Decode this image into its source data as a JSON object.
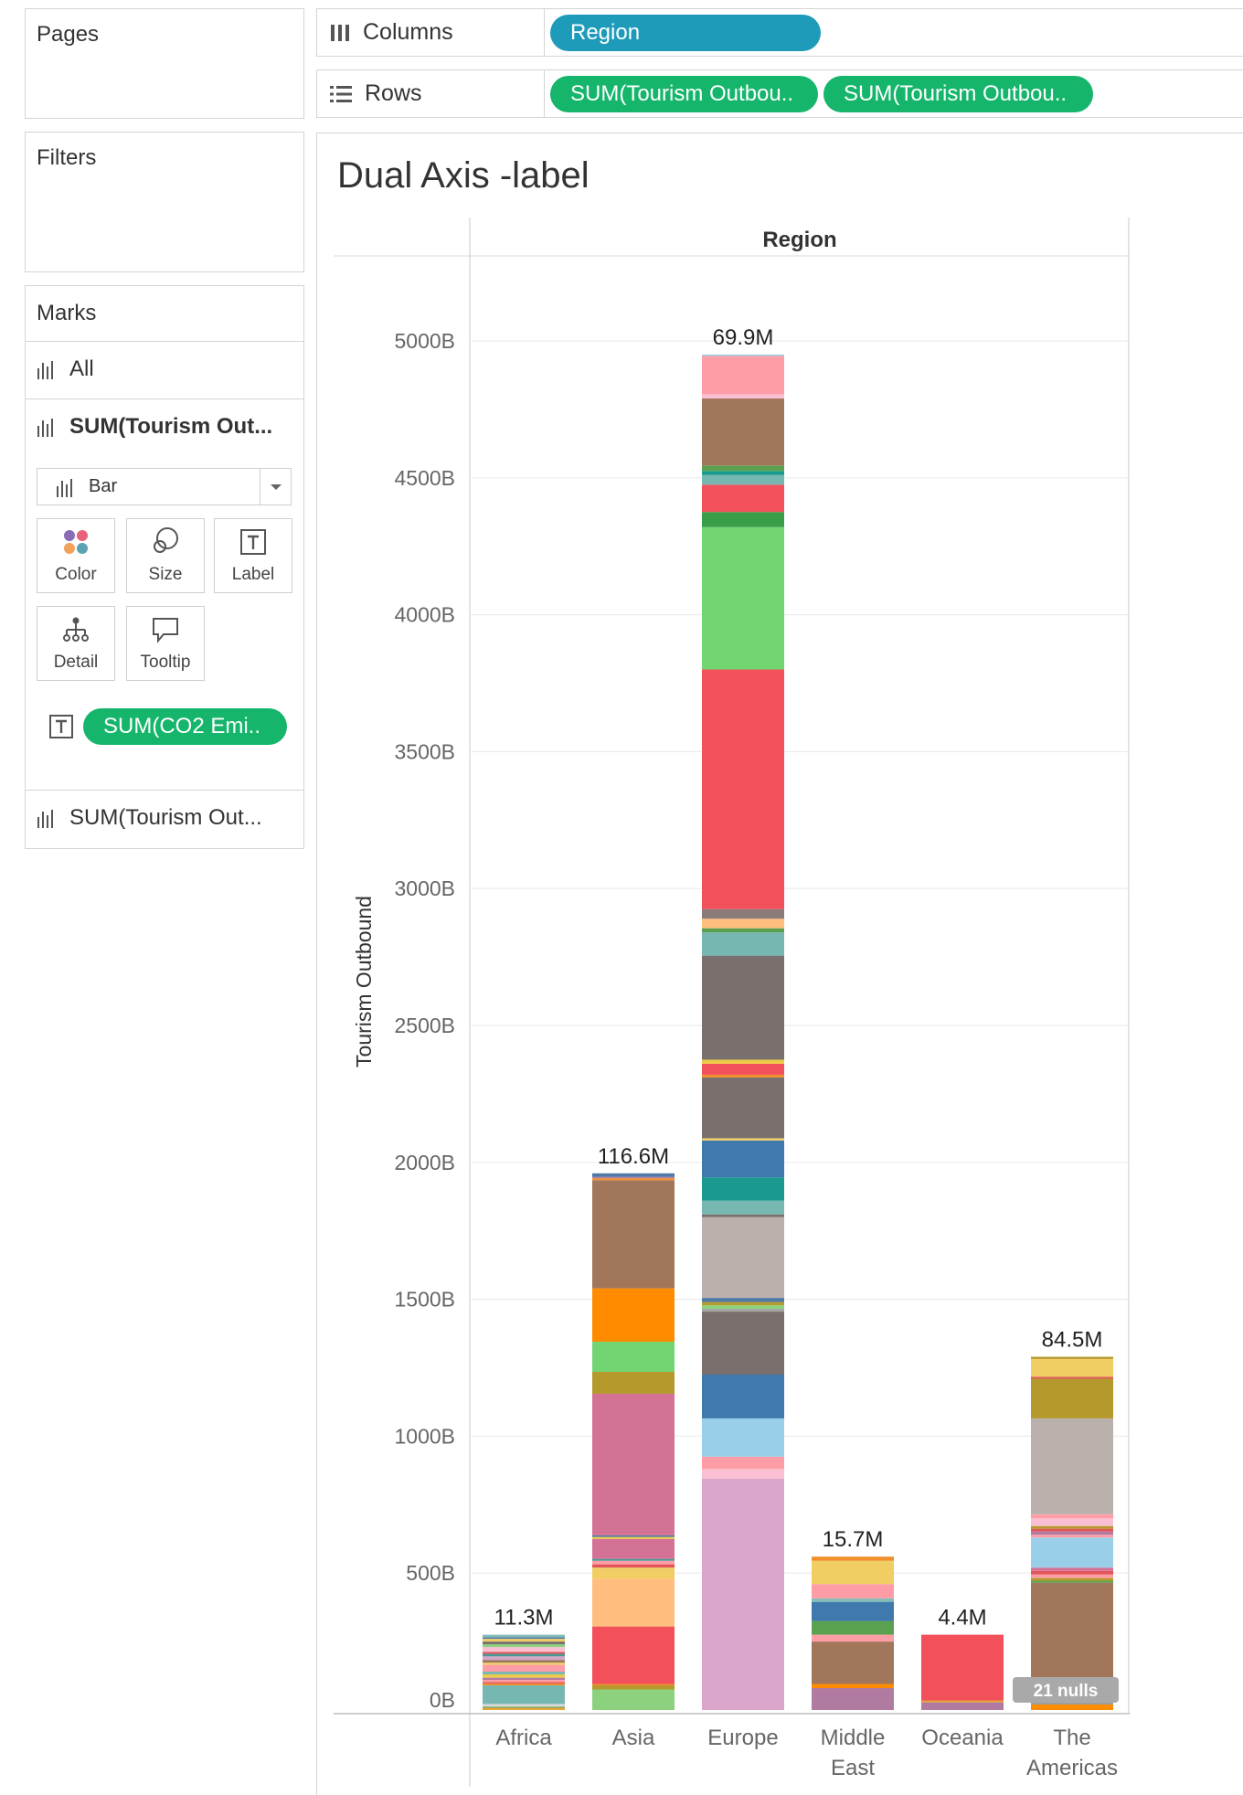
{
  "sidebar": {
    "pages_title": "Pages",
    "filters_title": "Filters",
    "marks_title": "Marks",
    "marks_all": "All",
    "marks_layer1": "SUM(Tourism Out...",
    "mark_type": "Bar",
    "buttons": {
      "color": "Color",
      "size": "Size",
      "label": "Label",
      "detail": "Detail",
      "tooltip": "Tooltip"
    },
    "label_field_pill": "SUM(CO2 Emi..",
    "marks_layer2": "SUM(Tourism Out..."
  },
  "shelves": {
    "columns_label": "Columns",
    "columns_pill": "Region",
    "rows_label": "Rows",
    "rows_pill_1": "SUM(Tourism Outbou..",
    "rows_pill_2": "SUM(Tourism Outbou.."
  },
  "sheet": {
    "title": "Dual Axis -label",
    "header": "Region",
    "nulls_badge": "21 nulls"
  },
  "colors": {
    "blue_pill": "#1f9bba",
    "green_pill": "#15b56b"
  },
  "chart_data": {
    "type": "bar",
    "stacked": true,
    "ylabel": "Tourism Outbound",
    "ylim": [
      0,
      5300
    ],
    "y_unit": "B",
    "yticks": [
      "0B",
      "500B",
      "1000B",
      "1500B",
      "2000B",
      "2500B",
      "3000B",
      "3500B",
      "4000B",
      "4500B",
      "5000B"
    ],
    "categories": [
      {
        "name": "Africa",
        "lines": [
          "Africa"
        ],
        "total": 275,
        "label": "11.3M",
        "segments": [
          [
            0,
            "#e8a33a"
          ],
          [
            8,
            "#59a14f"
          ],
          [
            12,
            "#d9d9d9"
          ],
          [
            22,
            "#76b7b2"
          ],
          [
            90,
            "#f28e2b"
          ],
          [
            97,
            "#e15759"
          ],
          [
            102,
            "#ff9da7"
          ],
          [
            110,
            "#b07aa1"
          ],
          [
            118,
            "#edc948"
          ],
          [
            130,
            "#76b7b2"
          ],
          [
            140,
            "#ff9da7"
          ],
          [
            165,
            "#f1ce63"
          ],
          [
            173,
            "#9d7660"
          ],
          [
            183,
            "#d4a6c8"
          ],
          [
            196,
            "#499894"
          ],
          [
            205,
            "#e15759"
          ],
          [
            212,
            "#fabfd2"
          ],
          [
            230,
            "#8cd17d"
          ],
          [
            240,
            "#79706e"
          ],
          [
            250,
            "#f1ce63"
          ],
          [
            260,
            "#4e79a7"
          ],
          [
            266,
            "#86bcb6"
          ]
        ]
      },
      {
        "name": "Asia",
        "lines": [
          "Asia"
        ],
        "total": 1960,
        "label": "116.6M",
        "segments": [
          [
            0,
            "#8cd17d"
          ],
          [
            75,
            "#b6992d"
          ],
          [
            90,
            "#f28e2b"
          ],
          [
            95,
            "#f2505a"
          ],
          [
            305,
            "#ffbe7d"
          ],
          [
            480,
            "#f1ce63"
          ],
          [
            520,
            "#e15759"
          ],
          [
            532,
            "#ff9da7"
          ],
          [
            545,
            "#499894"
          ],
          [
            552,
            "#d37295"
          ],
          [
            625,
            "#edc948"
          ],
          [
            632,
            "#4e79a7"
          ],
          [
            638,
            "#d37295"
          ],
          [
            1155,
            "#b6992d"
          ],
          [
            1235,
            "#72d572"
          ],
          [
            1345,
            "#ff8c00"
          ],
          [
            1540,
            "#a2765b"
          ],
          [
            1935,
            "#f28e2b"
          ],
          [
            1942,
            "#b07aa1"
          ],
          [
            1947,
            "#4e79a7"
          ]
        ]
      },
      {
        "name": "Europe",
        "lines": [
          "Europe"
        ],
        "total": 4950,
        "label": "69.9M",
        "segments": [
          [
            0,
            "#dba4ca"
          ],
          [
            845,
            "#fabfd2"
          ],
          [
            880,
            "#ff9da7"
          ],
          [
            925,
            "#9acfea"
          ],
          [
            1065,
            "#3f79ad"
          ],
          [
            1225,
            "#796f6c"
          ],
          [
            1455,
            "#a3a3a3"
          ],
          [
            1465,
            "#8cd17d"
          ],
          [
            1478,
            "#b6992d"
          ],
          [
            1490,
            "#4e79a7"
          ],
          [
            1505,
            "#bab0ac"
          ],
          [
            1800,
            "#79706e"
          ],
          [
            1810,
            "#76b7b2"
          ],
          [
            1860,
            "#1a9a8f"
          ],
          [
            1945,
            "#3f79ad"
          ],
          [
            2080,
            "#f1ce63"
          ],
          [
            2088,
            "#796f6c"
          ],
          [
            2310,
            "#f28e2b"
          ],
          [
            2320,
            "#f2505a"
          ],
          [
            2360,
            "#edc948"
          ],
          [
            2375,
            "#796f6c"
          ],
          [
            2755,
            "#76b7b2"
          ],
          [
            2840,
            "#59a14f"
          ],
          [
            2855,
            "#ffbe7d"
          ],
          [
            2890,
            "#8b7b78"
          ],
          [
            2925,
            "#f2505a"
          ],
          [
            3800,
            "#72d572"
          ],
          [
            4320,
            "#3a9e48"
          ],
          [
            4375,
            "#f2505a"
          ],
          [
            4475,
            "#76b7b2"
          ],
          [
            4510,
            "#1a9a8f"
          ],
          [
            4525,
            "#59a14f"
          ],
          [
            4545,
            "#a2765b"
          ],
          [
            4790,
            "#fabfd2"
          ],
          [
            4805,
            "#ff9da7"
          ],
          [
            4945,
            "#9acfea"
          ]
        ]
      },
      {
        "name": "Middle East",
        "lines": [
          "Middle",
          "East"
        ],
        "total": 560,
        "label": "15.7M",
        "segments": [
          [
            0,
            "#b07aa1"
          ],
          [
            80,
            "#ff8c00"
          ],
          [
            95,
            "#a2765b"
          ],
          [
            250,
            "#ff9da7"
          ],
          [
            275,
            "#59a14f"
          ],
          [
            325,
            "#3f79ad"
          ],
          [
            395,
            "#86bcb6"
          ],
          [
            408,
            "#ff9da7"
          ],
          [
            460,
            "#f1ce63"
          ],
          [
            545,
            "#f28e2b"
          ]
        ]
      },
      {
        "name": "Oceania",
        "lines": [
          "Oceania"
        ],
        "total": 275,
        "label": "4.4M",
        "segments": [
          [
            0,
            "#b07aa1"
          ],
          [
            28,
            "#e8a33a"
          ],
          [
            35,
            "#f2505a"
          ]
        ]
      },
      {
        "name": "The Americas",
        "lines": [
          "The",
          "Americas"
        ],
        "total": 1290,
        "label": "84.5M",
        "segments": [
          [
            0,
            "#ff8c00"
          ],
          [
            20,
            "#9aa0a0"
          ],
          [
            30,
            "#a2765b"
          ],
          [
            465,
            "#59a14f"
          ],
          [
            472,
            "#b6992d"
          ],
          [
            482,
            "#ff9da7"
          ],
          [
            495,
            "#e15759"
          ],
          [
            508,
            "#d37295"
          ],
          [
            520,
            "#9acfea"
          ],
          [
            630,
            "#ff9da7"
          ],
          [
            640,
            "#b07aa1"
          ],
          [
            652,
            "#e15759"
          ],
          [
            662,
            "#b6992d"
          ],
          [
            672,
            "#fabfd2"
          ],
          [
            700,
            "#ff9da7"
          ],
          [
            715,
            "#bab0ac"
          ],
          [
            1065,
            "#b6992d"
          ],
          [
            1210,
            "#e15759"
          ],
          [
            1217,
            "#f1ce63"
          ],
          [
            1282,
            "#b6992d"
          ]
        ]
      }
    ]
  }
}
